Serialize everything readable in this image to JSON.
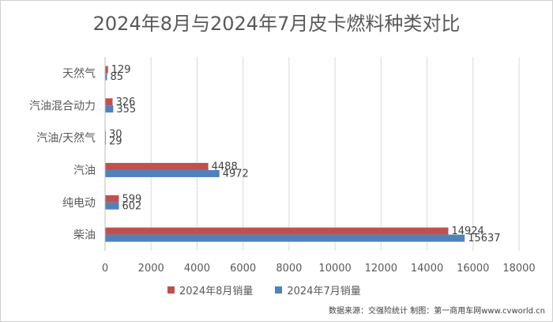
{
  "chart_data": {
    "type": "bar",
    "orientation": "horizontal",
    "title": "2024年8月与2024年7月皮卡燃料种类对比",
    "categories": [
      "天然气",
      "汽油混合动力",
      "汽油/天然气",
      "汽油",
      "纯电动",
      "柴油"
    ],
    "series": [
      {
        "name": "2024年8月销量",
        "values": [
          129,
          326,
          30,
          4488,
          599,
          14924
        ],
        "color": "#c0504d"
      },
      {
        "name": "2024年7月销量",
        "values": [
          85,
          355,
          29,
          4972,
          602,
          15637
        ],
        "color": "#4f81bd"
      }
    ],
    "xlim": [
      0,
      18000
    ],
    "xticks": [
      "0",
      "2000",
      "4000",
      "6000",
      "8000",
      "10000",
      "12000",
      "14000",
      "16000",
      "18000"
    ],
    "grid": true,
    "legend_position": "bottom"
  },
  "source_note": "数据来源：交强险统计 制图：第一商用车网www.cvworld.cn"
}
